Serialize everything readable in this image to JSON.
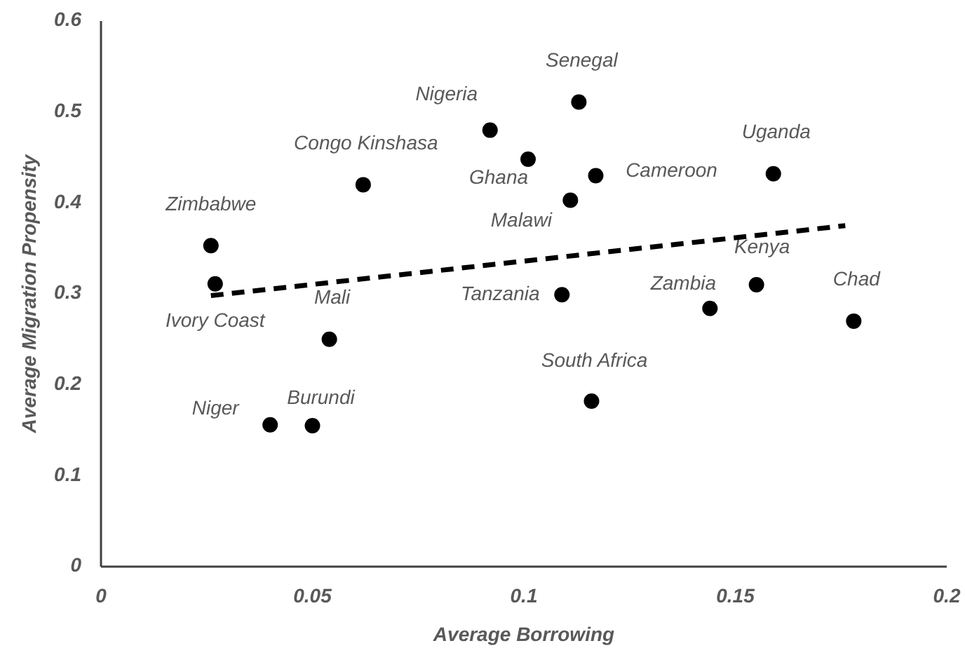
{
  "chart_data": {
    "type": "scatter",
    "xlabel": "Average Borrowing",
    "ylabel": "Average Migration Propensity",
    "xlim": [
      0,
      0.2
    ],
    "ylim": [
      0,
      0.6
    ],
    "xticks": [
      0,
      0.05,
      0.1,
      0.15,
      0.2
    ],
    "yticks": [
      0,
      0.1,
      0.2,
      0.3,
      0.4,
      0.5,
      0.6
    ],
    "grid": false,
    "legend": false,
    "marker": "circle",
    "series": [
      {
        "name": "Zimbabwe",
        "color": "#000000",
        "x": [
          0.026
        ],
        "values": [
          0.353
        ]
      },
      {
        "name": "Ivory Coast",
        "color": "#000000",
        "x": [
          0.027
        ],
        "values": [
          0.311
        ]
      },
      {
        "name": "Mali",
        "color": "#000000",
        "x": [
          0.054
        ],
        "values": [
          0.25
        ]
      },
      {
        "name": "Congo Kinshasa",
        "color": "#000000",
        "x": [
          0.062
        ],
        "values": [
          0.42
        ]
      },
      {
        "name": "Niger",
        "color": "#000000",
        "x": [
          0.04
        ],
        "values": [
          0.156
        ]
      },
      {
        "name": "Burundi",
        "color": "#000000",
        "x": [
          0.05
        ],
        "values": [
          0.155
        ]
      },
      {
        "name": "Nigeria",
        "color": "#000000",
        "x": [
          0.092
        ],
        "values": [
          0.48
        ]
      },
      {
        "name": "Senegal",
        "color": "#000000",
        "x": [
          0.113
        ],
        "values": [
          0.511
        ]
      },
      {
        "name": "Ghana",
        "color": "#000000",
        "x": [
          0.101
        ],
        "values": [
          0.448
        ]
      },
      {
        "name": "Cameroon",
        "color": "#000000",
        "x": [
          0.117
        ],
        "values": [
          0.43
        ]
      },
      {
        "name": "Malawi",
        "color": "#000000",
        "x": [
          0.111
        ],
        "values": [
          0.403
        ]
      },
      {
        "name": "Tanzania",
        "color": "#000000",
        "x": [
          0.109
        ],
        "values": [
          0.299
        ]
      },
      {
        "name": "South Africa",
        "color": "#000000",
        "x": [
          0.116
        ],
        "values": [
          0.182
        ]
      },
      {
        "name": "Zambia",
        "color": "#000000",
        "x": [
          0.144
        ],
        "values": [
          0.284
        ]
      },
      {
        "name": "Kenya",
        "color": "#000000",
        "x": [
          0.155
        ],
        "values": [
          0.31
        ]
      },
      {
        "name": "Uganda",
        "color": "#000000",
        "x": [
          0.159
        ],
        "values": [
          0.432
        ]
      },
      {
        "name": "Chad",
        "color": "#000000",
        "x": [
          0.178
        ],
        "values": [
          0.27
        ]
      },
      {
        "type": "line",
        "color": "#000000",
        "line_style": "dashed",
        "marker": "none",
        "x": [
          0.026,
          0.176
        ],
        "values": [
          0.298,
          0.375
        ]
      }
    ]
  }
}
